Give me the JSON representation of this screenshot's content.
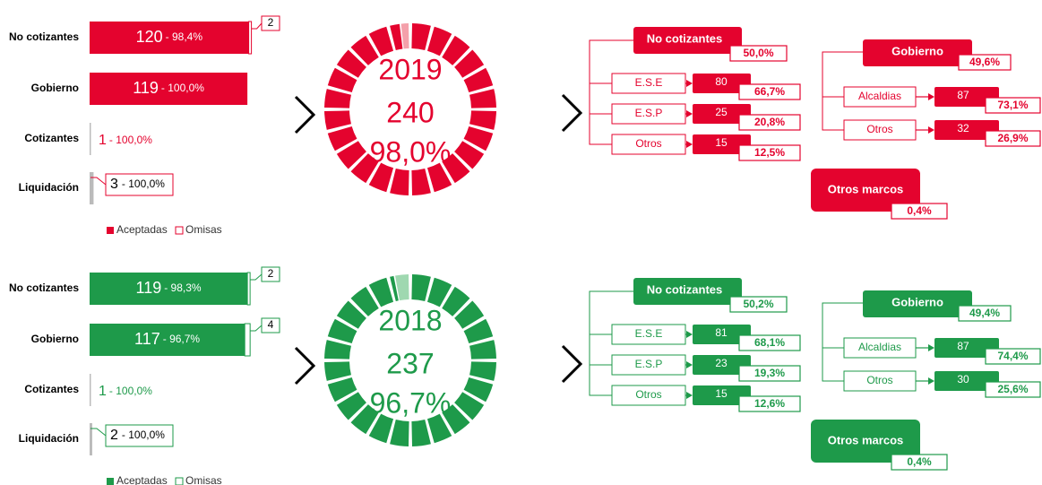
{
  "panels": [
    {
      "color": "#e4032e",
      "light": "#f4a0aa",
      "bars": [
        {
          "category": "No cotizantes",
          "accepted": 120,
          "share_label": "- 98,4%",
          "omitted": 2
        },
        {
          "category": "Gobierno",
          "accepted": 119,
          "share_label": "- 100,0%",
          "omitted": null
        },
        {
          "category": "Cotizantes",
          "accepted": 1,
          "share_label": "- 100,0%",
          "omitted": null
        },
        {
          "category": "Liquidación",
          "accepted": 3,
          "share_label": "- 100,0%",
          "omitted": null,
          "boxed": true
        }
      ],
      "legend": [
        "Aceptadas",
        "Omisas"
      ],
      "donut": {
        "year": "2019",
        "total": 240,
        "rate_label": "98,0%",
        "accepted_share": 98.0
      },
      "tree": {
        "no_cotizantes": {
          "name": "No cotizantes",
          "share": "50,0%",
          "children": [
            {
              "name": "E.S.E",
              "value": 80,
              "share": "66,7%"
            },
            {
              "name": "E.S.P",
              "value": 25,
              "share": "20,8%"
            },
            {
              "name": "Otros",
              "value": 15,
              "share": "12,5%"
            }
          ]
        },
        "gobierno": {
          "name": "Gobierno",
          "share": "49,6%",
          "children": [
            {
              "name": "Alcaldias",
              "value": 87,
              "share": "73,1%"
            },
            {
              "name": "Otros",
              "value": 32,
              "share": "26,9%"
            }
          ]
        },
        "otros_marcos": {
          "name": "Otros marcos",
          "share": "0,4%"
        }
      }
    },
    {
      "color": "#1e9a4a",
      "light": "#9fd8b0",
      "bars": [
        {
          "category": "No cotizantes",
          "accepted": 119,
          "share_label": "- 98,3%",
          "omitted": 2
        },
        {
          "category": "Gobierno",
          "accepted": 117,
          "share_label": "- 96,7%",
          "omitted": 4
        },
        {
          "category": "Cotizantes",
          "accepted": 1,
          "share_label": "- 100,0%",
          "omitted": null
        },
        {
          "category": "Liquidación",
          "accepted": 2,
          "share_label": "- 100,0%",
          "omitted": null,
          "boxed": true
        }
      ],
      "legend": [
        "Aceptadas",
        "Omisas"
      ],
      "donut": {
        "year": "2018",
        "total": 237,
        "rate_label": "96,7%",
        "accepted_share": 96.7
      },
      "tree": {
        "no_cotizantes": {
          "name": "No cotizantes",
          "share": "50,2%",
          "children": [
            {
              "name": "E.S.E",
              "value": 81,
              "share": "68,1%"
            },
            {
              "name": "E.S.P",
              "value": 23,
              "share": "19,3%"
            },
            {
              "name": "Otros",
              "value": 15,
              "share": "12,6%"
            }
          ]
        },
        "gobierno": {
          "name": "Gobierno",
          "share": "49,4%",
          "children": [
            {
              "name": "Alcaldias",
              "value": 87,
              "share": "74,4%"
            },
            {
              "name": "Otros",
              "value": 30,
              "share": "25,6%"
            }
          ]
        },
        "otros_marcos": {
          "name": "Otros marcos",
          "share": "0,4%"
        }
      }
    }
  ]
}
